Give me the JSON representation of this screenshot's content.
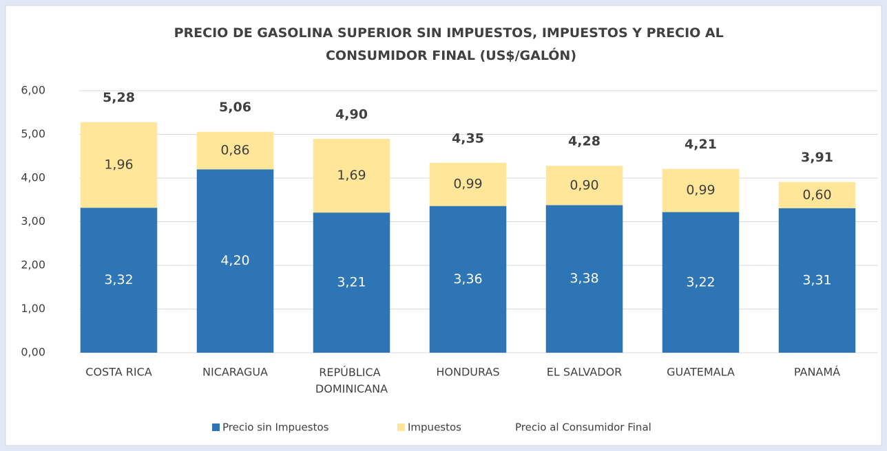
{
  "chart_data": {
    "type": "bar",
    "stacked": true,
    "title": "PRECIO DE GASOLINA SUPERIOR SIN IMPUESTOS, IMPUESTOS Y PRECIO AL CONSUMIDOR FINAL (US$/GALÓN)",
    "categories": [
      "COSTA RICA",
      "NICARAGUA",
      "REPÚBLICA DOMINICANA",
      "HONDURAS",
      "EL SALVADOR",
      "GUATEMALA",
      "PANAMÁ"
    ],
    "series": [
      {
        "name": "Precio sin Impuestos",
        "color": "#2e75b6",
        "values": [
          3.32,
          4.2,
          3.21,
          3.36,
          3.38,
          3.22,
          3.31
        ],
        "value_labels": [
          "3,32",
          "4,20",
          "3,21",
          "3,36",
          "3,38",
          "3,22",
          "3,31"
        ]
      },
      {
        "name": "Impuestos",
        "color": "#ffe699",
        "values": [
          1.96,
          0.86,
          1.69,
          0.99,
          0.9,
          0.99,
          0.6
        ],
        "value_labels": [
          "1,96",
          "0,86",
          "1,69",
          "0,99",
          "0,90",
          "0,99",
          "0,60"
        ]
      },
      {
        "name": "Precio al Consumidor Final",
        "type": "label",
        "values": [
          5.28,
          5.06,
          4.9,
          4.35,
          4.28,
          4.21,
          3.91
        ],
        "value_labels": [
          "5,28",
          "5,06",
          "4,90",
          "4,35",
          "4,28",
          "4,21",
          "3,91"
        ]
      }
    ],
    "ylim": [
      0,
      6
    ],
    "yticks": [
      {
        "value": 0,
        "label": "0,00"
      },
      {
        "value": 1,
        "label": "1,00"
      },
      {
        "value": 2,
        "label": "2,00"
      },
      {
        "value": 3,
        "label": "3,00"
      },
      {
        "value": 4,
        "label": "4,00"
      },
      {
        "value": 5,
        "label": "5,00"
      },
      {
        "value": 6,
        "label": "6,00"
      }
    ],
    "grid": true,
    "legend": "bottom"
  }
}
